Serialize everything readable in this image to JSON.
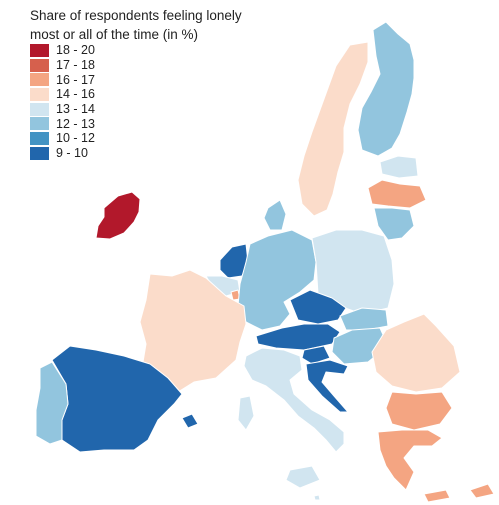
{
  "title_line1": "Share of respondents feeling lonely",
  "title_line2": "most or all of the time (in %)",
  "legend": [
    {
      "label": "18 - 20",
      "color": "#b2182b"
    },
    {
      "label": "17 - 18",
      "color": "#d6604d"
    },
    {
      "label": "16 - 17",
      "color": "#f4a582"
    },
    {
      "label": "14 - 16",
      "color": "#fbdcca"
    },
    {
      "label": "13 - 14",
      "color": "#d1e5f0"
    },
    {
      "label": "12 - 13",
      "color": "#92c5de"
    },
    {
      "label": "10 - 12",
      "color": "#4393c3"
    },
    {
      "label": "9 - 10",
      "color": "#2166ac"
    }
  ],
  "regions": [
    {
      "name": "Ireland",
      "band": "18 - 20"
    },
    {
      "name": "Finland",
      "band": "12 - 13"
    },
    {
      "name": "Sweden",
      "band": "14 - 16"
    },
    {
      "name": "Estonia",
      "band": "13 - 14"
    },
    {
      "name": "Latvia",
      "band": "16 - 17"
    },
    {
      "name": "Lithuania",
      "band": "12 - 13"
    },
    {
      "name": "Denmark",
      "band": "12 - 13"
    },
    {
      "name": "Netherlands",
      "band": "9 - 10"
    },
    {
      "name": "Belgium",
      "band": "13 - 14"
    },
    {
      "name": "Luxembourg",
      "band": "16 - 17"
    },
    {
      "name": "Germany",
      "band": "12 - 13"
    },
    {
      "name": "Poland",
      "band": "13 - 14"
    },
    {
      "name": "France",
      "band": "14 - 16"
    },
    {
      "name": "Czechia",
      "band": "9 - 10"
    },
    {
      "name": "Slovakia",
      "band": "12 - 13"
    },
    {
      "name": "Austria",
      "band": "9 - 10"
    },
    {
      "name": "Hungary",
      "band": "12 - 13"
    },
    {
      "name": "Slovenia",
      "band": "9 - 10"
    },
    {
      "name": "Croatia",
      "band": "9 - 10"
    },
    {
      "name": "Romania",
      "band": "14 - 16"
    },
    {
      "name": "Bulgaria",
      "band": "16 - 17"
    },
    {
      "name": "Greece",
      "band": "16 - 17"
    },
    {
      "name": "Italy",
      "band": "13 - 14"
    },
    {
      "name": "Spain",
      "band": "9 - 10"
    },
    {
      "name": "Portugal",
      "band": "12 - 13"
    },
    {
      "name": "Cyprus",
      "band": "16 - 17"
    },
    {
      "name": "Malta",
      "band": "13 - 14"
    }
  ]
}
